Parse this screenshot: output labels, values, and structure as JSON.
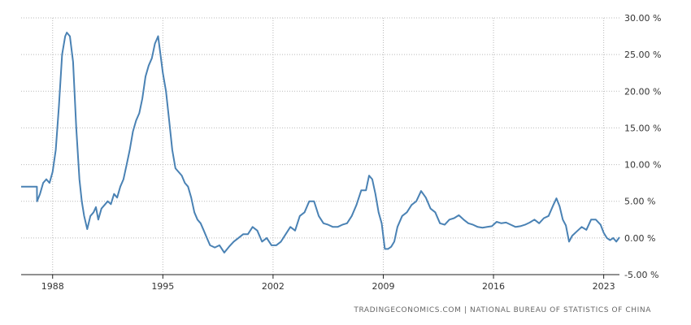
{
  "chart_data": {
    "type": "line",
    "title": "",
    "xlabel": "",
    "ylabel": "",
    "xlim": [
      1986.0,
      2024.0
    ],
    "ylim": [
      -5,
      30
    ],
    "yticks": [
      30,
      25,
      20,
      15,
      10,
      5,
      0,
      -5
    ],
    "ytick_labels": [
      "30.00 %",
      "25.00 %",
      "20.00 %",
      "15.00 %",
      "10.00 %",
      "5.00 %",
      "0.00 %",
      "-5.00 %"
    ],
    "xticks": [
      1988,
      1995,
      2002,
      2009,
      2016,
      2023
    ],
    "xtick_labels": [
      "1988",
      "1995",
      "2002",
      "2009",
      "2016",
      "2023"
    ],
    "grid": true,
    "legend": "none",
    "series_color": "#4a82b4",
    "series": [
      {
        "x": [
          1986.0,
          1987.0,
          1987.01,
          1987.2,
          1987.4,
          1987.6,
          1987.8,
          1988.0,
          1988.2,
          1988.4,
          1988.6,
          1988.8,
          1988.9,
          1989.1,
          1989.3,
          1989.5,
          1989.7,
          1989.85,
          1990.0,
          1990.2,
          1990.4,
          1990.6,
          1990.75,
          1990.9,
          1991.1,
          1991.3,
          1991.5,
          1991.7,
          1991.9,
          1992.1,
          1992.3,
          1992.5,
          1992.7,
          1992.9,
          1993.1,
          1993.3,
          1993.5,
          1993.7,
          1993.9,
          1994.1,
          1994.3,
          1994.5,
          1994.7,
          1994.85,
          1995.0,
          1995.2,
          1995.4,
          1995.6,
          1995.8,
          1996.0,
          1996.2,
          1996.4,
          1996.6,
          1996.8,
          1997.0,
          1997.2,
          1997.4,
          1997.6,
          1997.8,
          1998.0,
          1998.3,
          1998.6,
          1998.9,
          1999.2,
          1999.5,
          1999.8,
          2000.1,
          2000.4,
          2000.7,
          2001.0,
          2001.3,
          2001.6,
          2001.9,
          2002.2,
          2002.5,
          2002.8,
          2003.1,
          2003.4,
          2003.7,
          2004.0,
          2004.3,
          2004.6,
          2004.9,
          2005.2,
          2005.5,
          2005.8,
          2006.1,
          2006.4,
          2006.7,
          2007.0,
          2007.3,
          2007.6,
          2007.9,
          2008.1,
          2008.3,
          2008.5,
          2008.7,
          2008.9,
          2009.1,
          2009.3,
          2009.5,
          2009.7,
          2009.9,
          2010.2,
          2010.5,
          2010.8,
          2011.1,
          2011.4,
          2011.7,
          2012.0,
          2012.3,
          2012.6,
          2012.9,
          2013.2,
          2013.5,
          2013.8,
          2014.1,
          2014.4,
          2014.7,
          2015.0,
          2015.3,
          2015.6,
          2015.9,
          2016.2,
          2016.5,
          2016.8,
          2017.1,
          2017.4,
          2017.7,
          2018.0,
          2018.3,
          2018.6,
          2018.9,
          2019.2,
          2019.5,
          2019.8,
          2020.0,
          2020.2,
          2020.4,
          2020.6,
          2020.8,
          2021.0,
          2021.3,
          2021.6,
          2021.9,
          2022.2,
          2022.5,
          2022.8,
          2023.0,
          2023.2,
          2023.4,
          2023.6,
          2023.8,
          2024.0
        ],
        "values": [
          7.0,
          7.0,
          5.0,
          6.0,
          7.5,
          8.0,
          7.5,
          9.0,
          12.0,
          18.0,
          25.0,
          27.5,
          28.0,
          27.5,
          24.0,
          15.0,
          8.0,
          5.0,
          3.0,
          1.2,
          3.0,
          3.5,
          4.2,
          2.5,
          4.0,
          4.5,
          5.0,
          4.6,
          6.0,
          5.5,
          7.0,
          8.0,
          10.0,
          12.0,
          14.5,
          16.0,
          17.0,
          19.0,
          22.0,
          23.5,
          24.5,
          26.5,
          27.5,
          25.0,
          22.5,
          20.0,
          16.0,
          12.0,
          9.5,
          9.0,
          8.5,
          7.5,
          7.0,
          5.5,
          3.5,
          2.5,
          2.0,
          1.0,
          0.0,
          -1.0,
          -1.3,
          -1.0,
          -2.0,
          -1.2,
          -0.5,
          0.0,
          0.5,
          0.5,
          1.5,
          1.0,
          -0.5,
          0.0,
          -1.0,
          -1.0,
          -0.5,
          0.5,
          1.5,
          1.0,
          3.0,
          3.5,
          5.0,
          5.0,
          3.0,
          2.0,
          1.8,
          1.5,
          1.5,
          1.8,
          2.0,
          3.0,
          4.5,
          6.5,
          6.5,
          8.5,
          8.0,
          6.0,
          3.5,
          2.0,
          -1.5,
          -1.5,
          -1.2,
          -0.5,
          1.5,
          3.0,
          3.5,
          4.5,
          5.0,
          6.4,
          5.5,
          4.0,
          3.5,
          2.0,
          1.8,
          2.5,
          2.7,
          3.1,
          2.5,
          2.0,
          1.8,
          1.5,
          1.4,
          1.5,
          1.6,
          2.2,
          2.0,
          2.1,
          1.8,
          1.5,
          1.6,
          1.8,
          2.1,
          2.5,
          2.0,
          2.7,
          3.0,
          4.5,
          5.4,
          4.3,
          2.5,
          1.7,
          -0.5,
          0.3,
          0.9,
          1.5,
          1.1,
          2.5,
          2.5,
          1.8,
          0.7,
          0.0,
          -0.3,
          0.0,
          -0.5,
          0.1
        ]
      }
    ]
  },
  "source_text": "TRADINGECONOMICS.COM  |  NATIONAL BUREAU OF STATISTICS OF CHINA"
}
